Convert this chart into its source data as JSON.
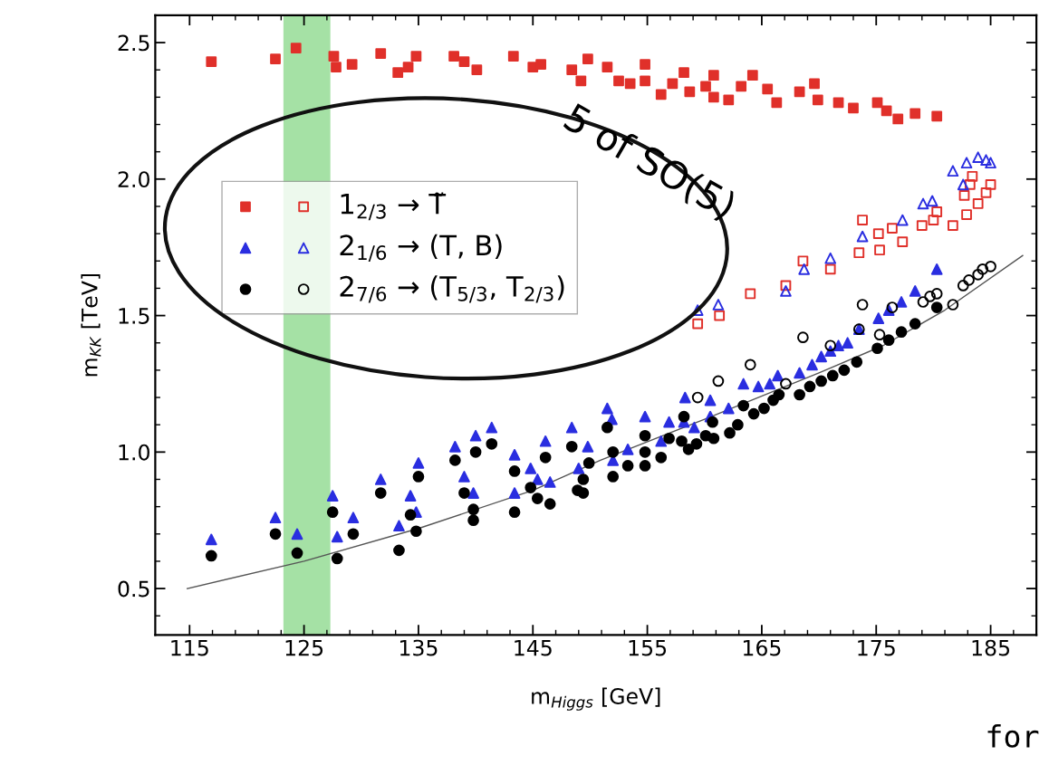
{
  "chart_data": {
    "type": "scatter",
    "xlabel": "m$_{Higgs}$ [GeV]",
    "ylabel": "m$_{KK}$ [TeV]",
    "xlim": [
      112,
      189
    ],
    "ylim": [
      0.33,
      2.6
    ],
    "xticks": [
      115,
      {
        "value": 117,
        "label": null
      },
      {
        "value": 119,
        "label": null
      },
      {
        "value": 121,
        "label": null
      },
      {
        "value": 123,
        "label": null
      },
      125,
      {
        "value": 127,
        "label": null
      },
      {
        "value": 129,
        "label": null
      },
      {
        "value": 131,
        "label": null
      },
      {
        "value": 133,
        "label": null
      },
      135,
      {
        "value": 137,
        "label": null
      },
      {
        "value": 139,
        "label": null
      },
      {
        "value": 141,
        "label": null
      },
      {
        "value": 143,
        "label": null
      },
      145,
      {
        "value": 147,
        "label": null
      },
      {
        "value": 149,
        "label": null
      },
      {
        "value": 151,
        "label": null
      },
      {
        "value": 153,
        "label": null
      },
      155,
      {
        "value": 157,
        "label": null
      },
      {
        "value": 159,
        "label": null
      },
      {
        "value": 161,
        "label": null
      },
      {
        "value": 163,
        "label": null
      },
      165,
      {
        "value": 167,
        "label": null
      },
      {
        "value": 169,
        "label": null
      },
      {
        "value": 171,
        "label": null
      },
      {
        "value": 173,
        "label": null
      },
      175,
      {
        "value": 177,
        "label": null
      },
      {
        "value": 179,
        "label": null
      },
      {
        "value": 181,
        "label": null
      },
      {
        "value": 183,
        "label": null
      },
      185,
      {
        "value": 187,
        "label": null
      }
    ],
    "yticks": [
      {
        "value": 0.4,
        "label": null
      },
      {
        "value": 0.5,
        "label": "0.5"
      },
      {
        "value": 0.6,
        "label": null
      },
      {
        "value": 0.7,
        "label": null
      },
      {
        "value": 0.8,
        "label": null
      },
      {
        "value": 0.9,
        "label": null
      },
      {
        "value": 1.0,
        "label": "1.0"
      },
      {
        "value": 1.1,
        "label": null
      },
      {
        "value": 1.2,
        "label": null
      },
      {
        "value": 1.3,
        "label": null
      },
      {
        "value": 1.4,
        "label": null
      },
      {
        "value": 1.5,
        "label": "1.5"
      },
      {
        "value": 1.6,
        "label": null
      },
      {
        "value": 1.7,
        "label": null
      },
      {
        "value": 1.8,
        "label": null
      },
      {
        "value": 1.9,
        "label": null
      },
      {
        "value": 2.0,
        "label": "2.0"
      },
      {
        "value": 2.1,
        "label": null
      },
      {
        "value": 2.2,
        "label": null
      },
      {
        "value": 2.3,
        "label": null
      },
      {
        "value": 2.4,
        "label": null
      },
      {
        "value": 2.5,
        "label": "2.5"
      }
    ],
    "grid": false,
    "legend": "center left",
    "bands": [
      {
        "axis": "x",
        "from": 123.2,
        "to": 127.3,
        "color": "#8fd98f"
      }
    ],
    "annotations": [
      "5 of SO(5)",
      "for"
    ],
    "series": [
      {
        "name": "1$_{2/3}$ → T̃",
        "color": "#e0302a",
        "marker": "square",
        "x": [
          116.9,
          122.5,
          124.3,
          127.6,
          127.8,
          129.2,
          131.7,
          133.2,
          134.1,
          134.8,
          138.1,
          139.0,
          140.1,
          143.3,
          145.0,
          145.7,
          148.4,
          149.2,
          149.8,
          151.5,
          152.5,
          153.5,
          154.8,
          154.8,
          156.2,
          157.2,
          158.2,
          158.7,
          160.1,
          160.8,
          160.8,
          162.1,
          163.2,
          164.2,
          165.5,
          166.3,
          168.3,
          169.6,
          169.9,
          171.7,
          173.0,
          175.1,
          175.9,
          176.9,
          178.4,
          180.3
        ],
        "values": [
          2.43,
          2.44,
          2.48,
          2.45,
          2.41,
          2.42,
          2.46,
          2.39,
          2.41,
          2.45,
          2.45,
          2.43,
          2.4,
          2.45,
          2.41,
          2.42,
          2.4,
          2.36,
          2.44,
          2.41,
          2.36,
          2.35,
          2.42,
          2.36,
          2.31,
          2.35,
          2.39,
          2.32,
          2.34,
          2.38,
          2.3,
          2.29,
          2.34,
          2.38,
          2.33,
          2.28,
          2.32,
          2.35,
          2.29,
          2.28,
          2.26,
          2.28,
          2.25,
          2.22,
          2.24,
          2.23
        ]
      },
      {
        "color": "#e0302a",
        "marker": "square-open",
        "x": [
          159.4,
          161.3,
          164.0,
          167.1,
          168.6,
          171.0,
          173.5,
          173.8,
          175.2,
          175.3,
          176.4,
          177.3,
          179.0,
          180.0,
          180.3,
          181.7,
          182.7,
          182.9,
          183.2,
          183.4,
          183.9,
          184.6,
          185.0
        ],
        "values": [
          1.47,
          1.5,
          1.58,
          1.61,
          1.7,
          1.67,
          1.73,
          1.85,
          1.8,
          1.74,
          1.82,
          1.77,
          1.83,
          1.85,
          1.88,
          1.83,
          1.94,
          1.87,
          1.98,
          2.01,
          1.91,
          1.95,
          1.98
        ]
      },
      {
        "name": "2$_{1/6}$ → (T, B)",
        "color": "#2a2ee0",
        "marker": "triangle",
        "x": [
          116.9,
          122.5,
          124.4,
          127.5,
          127.9,
          129.3,
          131.7,
          133.3,
          134.3,
          134.8,
          135.0,
          138.2,
          139.0,
          140.0,
          139.8,
          141.4,
          143.4,
          143.4,
          144.8,
          145.4,
          146.1,
          146.5,
          148.4,
          149.0,
          149.8,
          151.5,
          151.9,
          152.0,
          153.3,
          154.8,
          156.2,
          156.9,
          158.3,
          158.2,
          159.1,
          160.5,
          160.5,
          162.1,
          163.4,
          164.7,
          165.7,
          166.4,
          168.3,
          169.4,
          170.2,
          171.0,
          171.7,
          172.5,
          173.5,
          175.2,
          176.1,
          177.2,
          178.4,
          180.3
        ],
        "values": [
          0.68,
          0.76,
          0.7,
          0.84,
          0.69,
          0.76,
          0.9,
          0.73,
          0.84,
          0.78,
          0.96,
          1.02,
          0.91,
          1.06,
          0.85,
          1.09,
          0.99,
          0.85,
          0.94,
          0.9,
          1.04,
          0.89,
          1.09,
          0.94,
          1.02,
          1.16,
          1.12,
          0.97,
          1.01,
          1.13,
          1.04,
          1.11,
          1.2,
          1.11,
          1.09,
          1.19,
          1.13,
          1.16,
          1.25,
          1.24,
          1.25,
          1.28,
          1.29,
          1.32,
          1.35,
          1.37,
          1.39,
          1.4,
          1.45,
          1.49,
          1.52,
          1.55,
          1.59,
          1.67
        ]
      },
      {
        "color": "#2a2ee0",
        "marker": "triangle-open",
        "x": [
          159.4,
          161.2,
          167.1,
          168.7,
          171.0,
          173.8,
          177.3,
          179.1,
          179.9,
          181.7,
          182.6,
          182.9,
          183.9,
          184.6,
          185.0
        ],
        "values": [
          1.52,
          1.54,
          1.59,
          1.67,
          1.71,
          1.79,
          1.85,
          1.91,
          1.92,
          2.03,
          1.98,
          2.06,
          2.08,
          2.07,
          2.06
        ]
      },
      {
        "name": "2$_{7/6}$ → (T$_{5/3}$, T$_{2/3}$)",
        "color": "#000000",
        "marker": "circle",
        "x": [
          116.9,
          122.5,
          124.4,
          127.5,
          127.9,
          129.3,
          131.7,
          133.3,
          134.3,
          134.8,
          135.0,
          138.2,
          139.0,
          140.0,
          139.8,
          139.8,
          141.4,
          143.4,
          143.4,
          144.8,
          145.4,
          146.1,
          146.5,
          148.4,
          148.9,
          149.4,
          149.4,
          149.9,
          151.5,
          152.0,
          152.0,
          153.3,
          154.8,
          154.8,
          154.8,
          156.2,
          156.9,
          158.0,
          158.6,
          158.2,
          159.3,
          160.1,
          160.7,
          160.8,
          162.2,
          162.9,
          163.4,
          164.3,
          165.2,
          166.0,
          166.5,
          168.3,
          169.2,
          170.2,
          171.2,
          172.2,
          173.3,
          175.1,
          176.1,
          177.2,
          178.4,
          180.3
        ],
        "values": [
          0.62,
          0.7,
          0.63,
          0.78,
          0.61,
          0.7,
          0.85,
          0.64,
          0.77,
          0.71,
          0.91,
          0.97,
          0.85,
          1.0,
          0.79,
          0.75,
          1.03,
          0.93,
          0.78,
          0.87,
          0.83,
          0.98,
          0.81,
          1.02,
          0.86,
          0.85,
          0.9,
          0.96,
          1.09,
          1.0,
          0.91,
          0.95,
          1.06,
          1.0,
          0.95,
          0.98,
          1.05,
          1.04,
          1.01,
          1.13,
          1.03,
          1.06,
          1.11,
          1.05,
          1.07,
          1.1,
          1.17,
          1.14,
          1.16,
          1.19,
          1.21,
          1.21,
          1.24,
          1.26,
          1.28,
          1.3,
          1.33,
          1.38,
          1.41,
          1.44,
          1.47,
          1.53
        ]
      },
      {
        "color": "#000000",
        "marker": "circle-open",
        "x": [
          159.4,
          161.2,
          164.0,
          167.1,
          168.6,
          171.0,
          173.5,
          173.8,
          175.3,
          176.4,
          179.1,
          179.7,
          180.3,
          181.7,
          182.6,
          183.1,
          183.9,
          184.3,
          185.0
        ],
        "values": [
          1.2,
          1.26,
          1.32,
          1.25,
          1.42,
          1.39,
          1.45,
          1.54,
          1.43,
          1.53,
          1.55,
          1.57,
          1.58,
          1.54,
          1.61,
          1.63,
          1.65,
          1.67,
          1.68
        ]
      },
      {
        "type": "line",
        "color": "#555555",
        "marker": "none",
        "x": [
          114.8,
          125,
          135,
          145,
          150.9,
          160,
          170,
          175.6,
          181,
          187.8
        ],
        "values": [
          0.5,
          0.6,
          0.72,
          0.86,
          0.97,
          1.12,
          1.29,
          1.39,
          1.52,
          1.72
        ]
      }
    ]
  }
}
